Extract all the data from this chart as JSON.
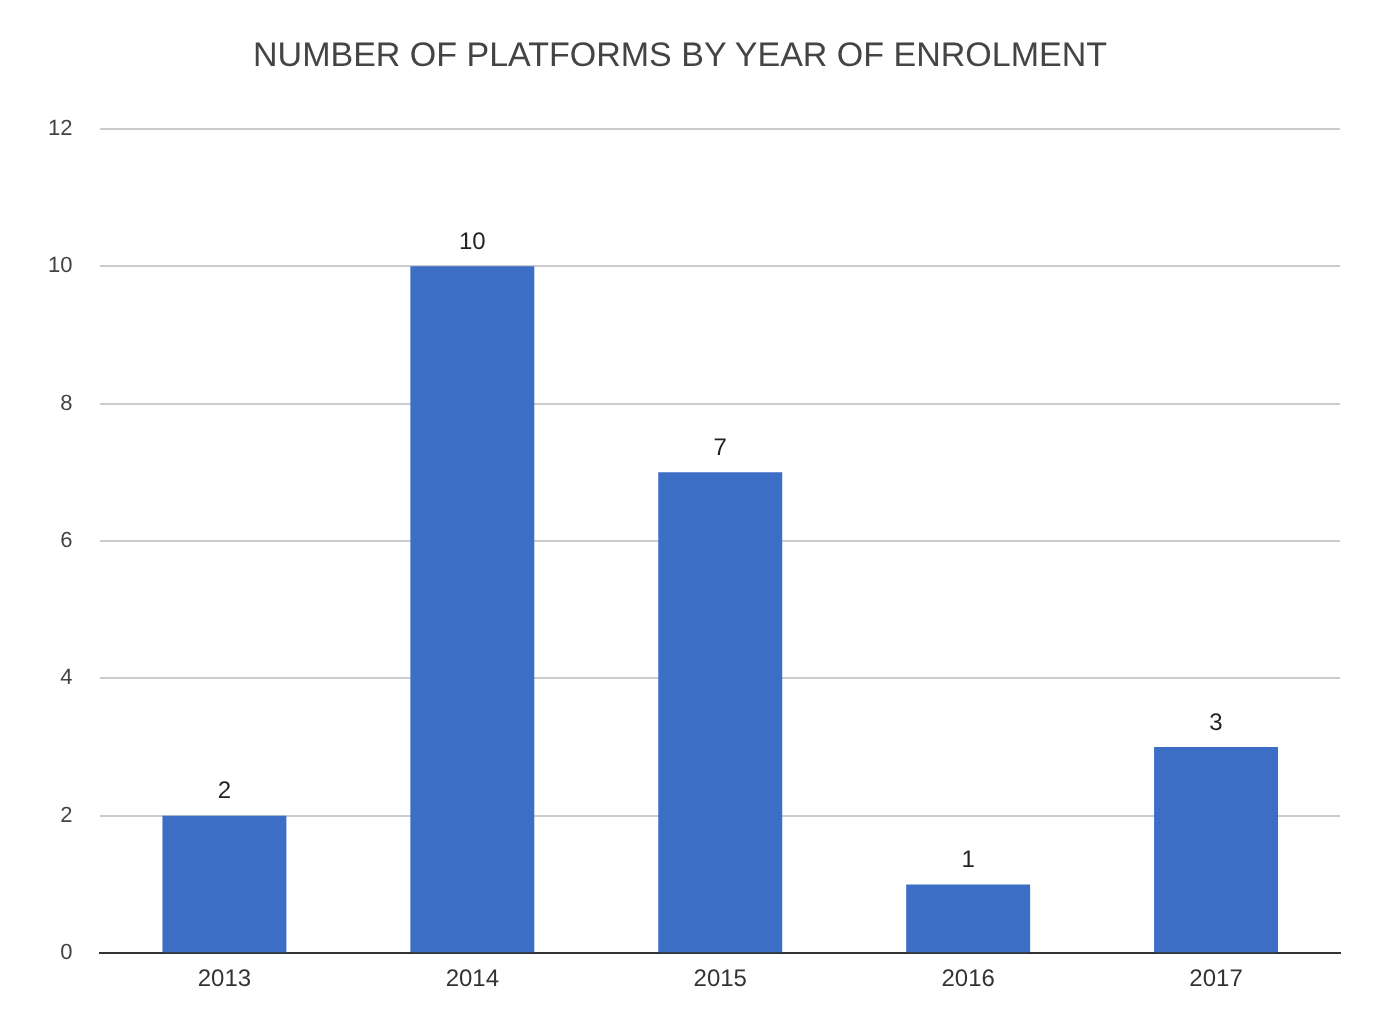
{
  "chart_data": {
    "type": "bar",
    "title": "NUMBER OF PLATFORMS BY YEAR OF ENROLMENT",
    "categories": [
      "2013",
      "2014",
      "2015",
      "2016",
      "2017"
    ],
    "values": [
      2,
      10,
      7,
      1,
      3
    ],
    "color": "#3d6ec6",
    "ylim": [
      0,
      12
    ],
    "yticks": [
      0,
      2,
      4,
      6,
      8,
      10,
      12
    ],
    "grid": "y",
    "data_labels": true,
    "legend": false
  }
}
